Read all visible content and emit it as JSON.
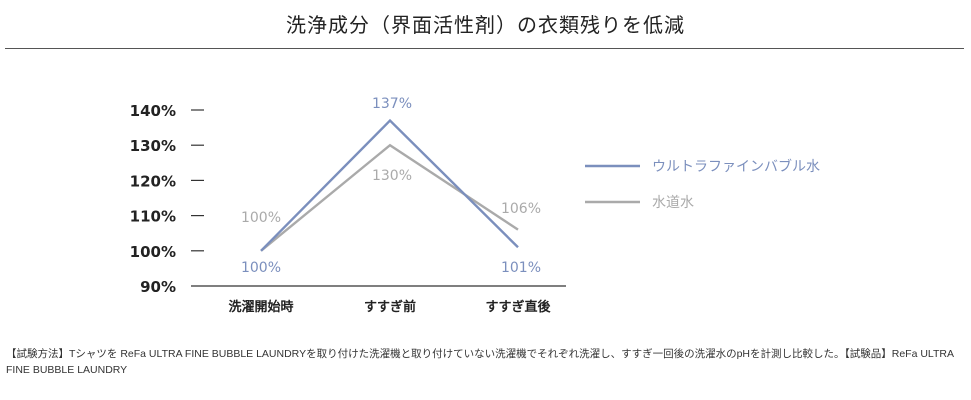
{
  "title": "洗浄成分（界面活性剤）の衣類残りを低減",
  "footnote": "【試験方法】Tシャツを ReFa ULTRA FINE BUBBLE LAUNDRYを取り付けた洗濯機と取り付けていない洗濯機でそれぞれ洗濯し、すすぎ一回後の洗濯水のpHを計測し比較した。【試験品】ReFa ULTRA FINE BUBBLE LAUNDRY",
  "colors": {
    "ultra_fine": "#7b8fbd",
    "tap_water": "#aaaaaa",
    "axis": "#333333"
  },
  "chart_data": {
    "type": "line",
    "categories": [
      "洗濯開始時",
      "すすぎ前",
      "すすぎ直後"
    ],
    "yticks": [
      "140%",
      "130%",
      "120%",
      "110%",
      "100%",
      "90%"
    ],
    "ylim": [
      90,
      145
    ],
    "legend_position": "right",
    "series": [
      {
        "name": "ウルトラファインバブル水",
        "values": [
          100,
          137,
          101
        ],
        "labels": [
          "100%",
          "137%",
          "101%"
        ]
      },
      {
        "name": "水道水",
        "values": [
          100,
          130,
          106
        ],
        "labels": [
          "100%",
          "130%",
          "106%"
        ]
      }
    ]
  }
}
